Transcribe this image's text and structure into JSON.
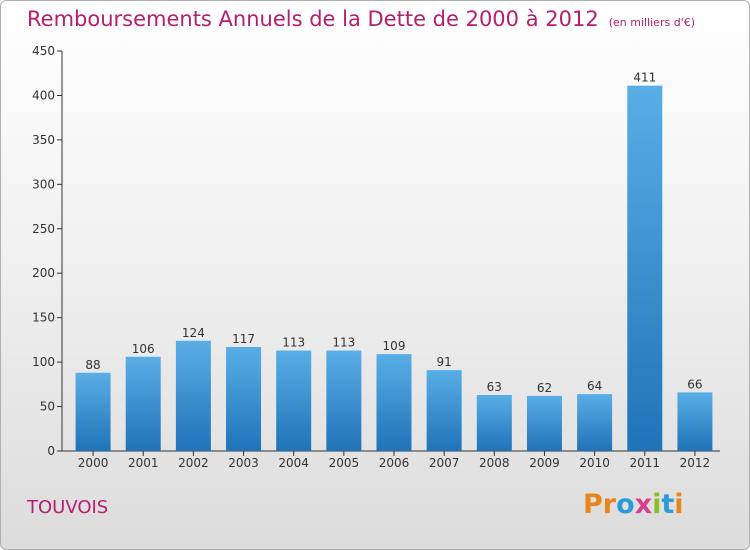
{
  "header": {
    "title": "Remboursements Annuels de la Dette de 2000 à 2012",
    "subtitle": "(en milliers d'€)"
  },
  "footer": {
    "commune": "TOUVOIS",
    "logo": {
      "text": "Proxiti",
      "letters": [
        {
          "ch": "P",
          "color": "#e8861b"
        },
        {
          "ch": "r",
          "color": "#e8861b"
        },
        {
          "ch": "o",
          "color": "#2a9ad8"
        },
        {
          "ch": "x",
          "color": "#d63f8e"
        },
        {
          "ch": "i",
          "color": "#8bbf2a"
        },
        {
          "ch": "t",
          "color": "#2a9ad8"
        },
        {
          "ch": "i",
          "color": "#e8861b"
        }
      ]
    }
  },
  "chart_data": {
    "type": "bar",
    "title": "Remboursements Annuels de la Dette de 2000 à 2012",
    "subtitle": "(en milliers d'€)",
    "categories": [
      "2000",
      "2001",
      "2002",
      "2003",
      "2004",
      "2005",
      "2006",
      "2007",
      "2008",
      "2009",
      "2010",
      "2011",
      "2012"
    ],
    "values": [
      88,
      106,
      124,
      117,
      113,
      113,
      109,
      91,
      63,
      62,
      64,
      411,
      66
    ],
    "ylim": [
      0,
      450
    ],
    "yticks": [
      0,
      50,
      100,
      150,
      200,
      250,
      300,
      350,
      400,
      450
    ],
    "grid": false,
    "legend": "none",
    "colors": {
      "bar_top": "#5aaee6",
      "bar_bottom": "#1f73b8",
      "axis": "#333333",
      "text": "#333333"
    }
  }
}
